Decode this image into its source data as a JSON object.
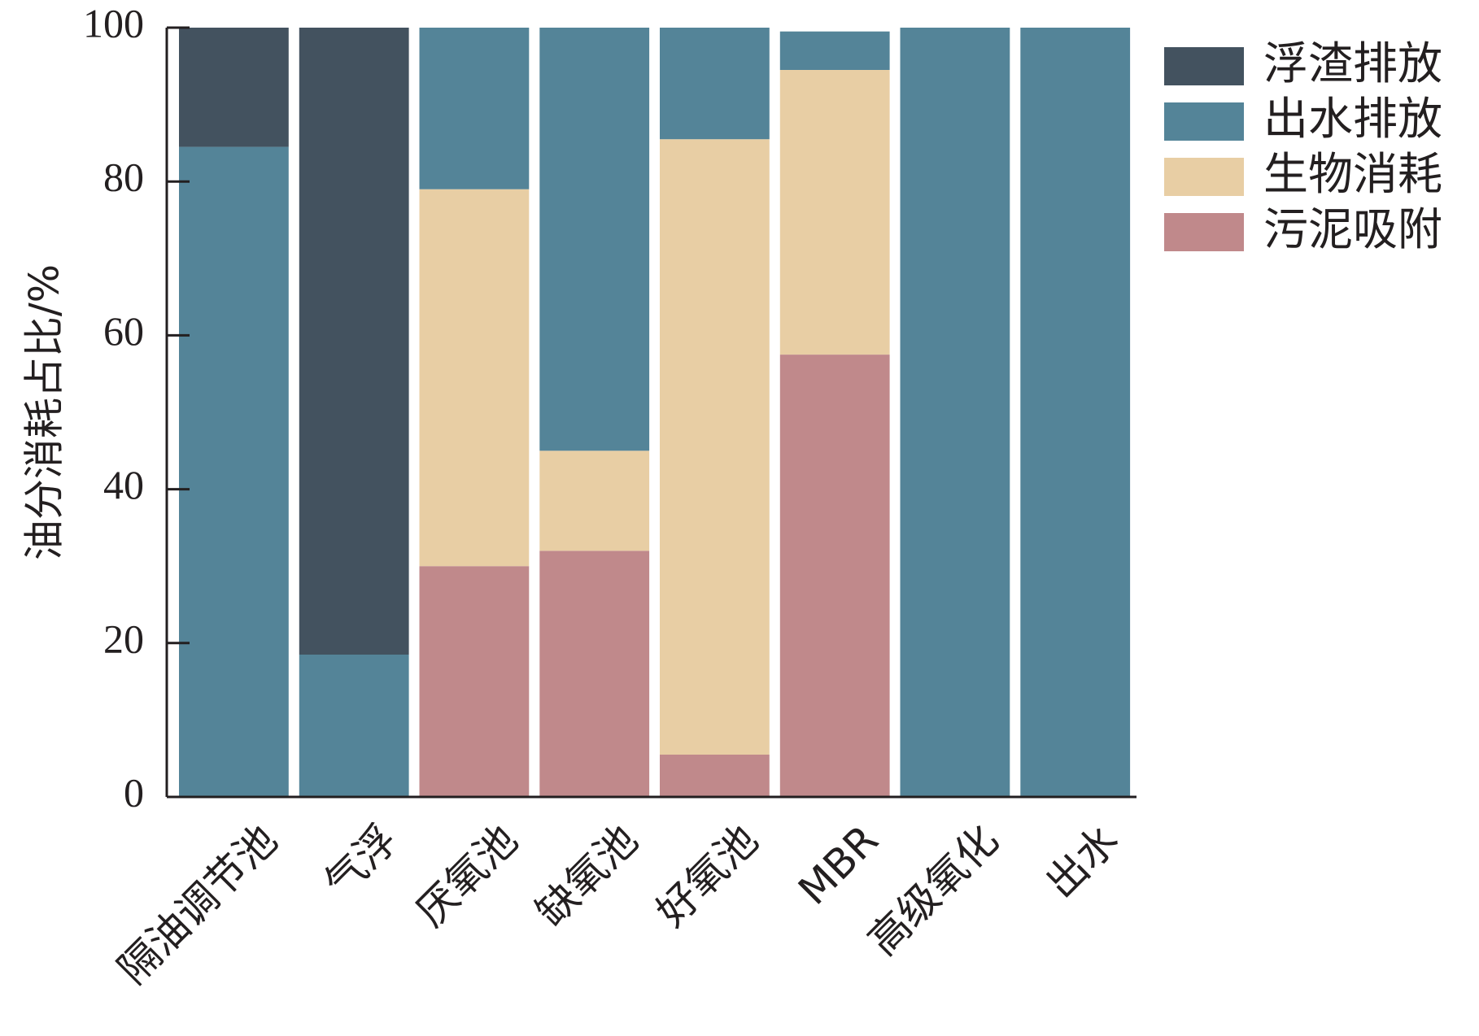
{
  "chart_data": {
    "type": "bar",
    "stacked": true,
    "title": "",
    "xlabel": "",
    "ylabel": "油分消耗占比/%",
    "ylim": [
      0,
      100
    ],
    "yticks": [
      0,
      20,
      40,
      60,
      80,
      100
    ],
    "grid": false,
    "legend_position": "top-right",
    "categories": [
      "隔油调节池",
      "气浮",
      "厌氧池",
      "缺氧池",
      "好氧池",
      "MBR",
      "高级氧化",
      "出水"
    ],
    "series": [
      {
        "name": "污泥吸附",
        "color": "#c0898b",
        "values": [
          0,
          0,
          30,
          32,
          5.5,
          57.5,
          0,
          0
        ]
      },
      {
        "name": "生物消耗",
        "color": "#e8cea4",
        "values": [
          0,
          0,
          49,
          13,
          80,
          37,
          0,
          0
        ]
      },
      {
        "name": "出水排放",
        "color": "#548498",
        "values": [
          84.5,
          18.5,
          21,
          55,
          14.5,
          5,
          100,
          100
        ]
      },
      {
        "name": "浮渣排放",
        "color": "#43525f",
        "values": [
          15.5,
          81.5,
          0,
          0,
          0,
          0,
          0,
          0
        ]
      }
    ],
    "legend_order": [
      "浮渣排放",
      "出水排放",
      "生物消耗",
      "污泥吸附"
    ]
  }
}
